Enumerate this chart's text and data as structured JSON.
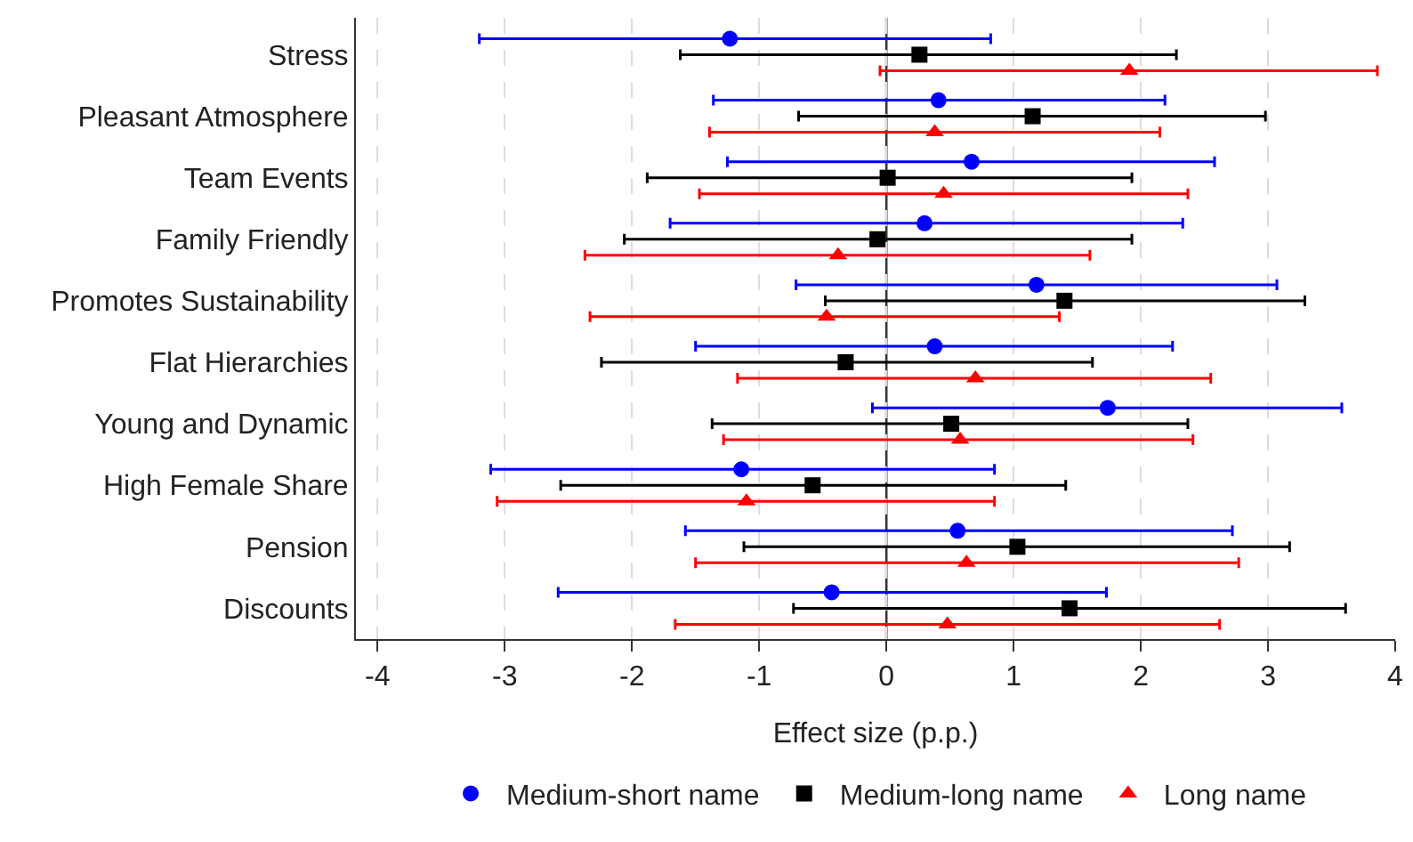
{
  "chart_data": {
    "type": "scatter",
    "orientation": "horizontal",
    "xlabel": "Effect size (p.p.)",
    "categories": [
      "Stress",
      "Pleasant Atmosphere",
      "Team Events",
      "Family Friendly",
      "Promotes Sustainability",
      "Flat Hierarchies",
      "Young and Dynamic",
      "High Female Share",
      "Pension",
      "Discounts"
    ],
    "series": [
      {
        "name": "Medium-short name",
        "color": "#0000ff",
        "marker": "circle",
        "values": [
          -1.23,
          0.41,
          0.67,
          0.3,
          1.18,
          0.38,
          1.74,
          -1.14,
          0.56,
          -0.43
        ],
        "errors": [
          [
            -3.2,
            0.82
          ],
          [
            -1.36,
            2.19
          ],
          [
            -1.25,
            2.58
          ],
          [
            -1.7,
            2.33
          ],
          [
            -0.71,
            3.07
          ],
          [
            -1.5,
            2.25
          ],
          [
            -0.11,
            3.58
          ],
          [
            -3.11,
            0.85
          ],
          [
            -1.58,
            2.72
          ],
          [
            -2.58,
            1.73
          ]
        ]
      },
      {
        "name": "Medium-long name",
        "color": "#000000",
        "marker": "square",
        "values": [
          0.26,
          1.15,
          0.01,
          -0.07,
          1.4,
          -0.32,
          0.51,
          -0.58,
          1.03,
          1.44
        ],
        "errors": [
          [
            -1.62,
            2.28
          ],
          [
            -0.69,
            2.98
          ],
          [
            -1.88,
            1.93
          ],
          [
            -2.06,
            1.93
          ],
          [
            -0.48,
            3.29
          ],
          [
            -2.24,
            1.62
          ],
          [
            -1.37,
            2.37
          ],
          [
            -2.56,
            1.41
          ],
          [
            -1.12,
            3.17
          ],
          [
            -0.73,
            3.61
          ]
        ]
      },
      {
        "name": "Long name",
        "color": "#ff0000",
        "marker": "triangle",
        "values": [
          1.91,
          0.38,
          0.45,
          -0.38,
          -0.47,
          0.7,
          0.58,
          -1.1,
          0.63,
          0.48
        ],
        "errors": [
          [
            -0.05,
            3.86
          ],
          [
            -1.39,
            2.15
          ],
          [
            -1.47,
            2.37
          ],
          [
            -2.37,
            1.6
          ],
          [
            -2.33,
            1.36
          ],
          [
            -1.17,
            2.55
          ],
          [
            -1.28,
            2.41
          ],
          [
            -3.06,
            0.85
          ],
          [
            -1.5,
            2.77
          ],
          [
            -1.66,
            2.62
          ]
        ]
      }
    ],
    "xlim": [
      -4.17,
      4.0
    ],
    "xticks": [
      -4,
      -3,
      -2,
      -1,
      0,
      1,
      2,
      3,
      4
    ],
    "ref_lines": [
      {
        "axis": "x",
        "value": 0,
        "color": "#333333",
        "line_style": "solid"
      }
    ],
    "grid": "x",
    "legend": "bottom"
  }
}
